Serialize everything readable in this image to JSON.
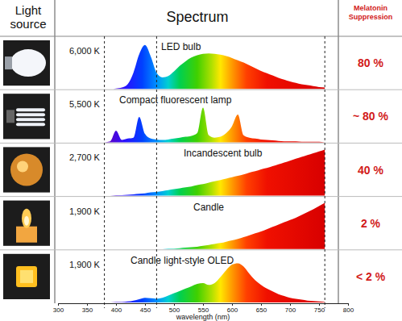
{
  "chart_data": {
    "type": "area",
    "column_headers": [
      "Light source",
      "Spectrum",
      "Melatonin Suppression"
    ],
    "x_label": "wavelength (nm)",
    "xlim": [
      300,
      800
    ],
    "xticks": [
      300,
      350,
      400,
      450,
      500,
      550,
      600,
      650,
      700,
      750,
      800
    ],
    "ylim": [
      0,
      100
    ],
    "tick_labels": "x",
    "reference_lines": [
      380,
      470,
      760
    ],
    "x": [
      380,
      390,
      400,
      410,
      420,
      430,
      440,
      450,
      460,
      470,
      480,
      490,
      500,
      510,
      520,
      530,
      540,
      550,
      560,
      570,
      580,
      590,
      600,
      610,
      620,
      630,
      640,
      650,
      660,
      670,
      680,
      690,
      700,
      710,
      720,
      730,
      740,
      750,
      760
    ],
    "series": [
      {
        "name": "LED bulb",
        "color_temperature": {
          "value": 6000,
          "label": "6,000 K"
        },
        "melatonin_suppression": {
          "value": 80,
          "label": "80 %"
        },
        "values": [
          0,
          0,
          1,
          3,
          10,
          35,
          75,
          95,
          70,
          35,
          25,
          28,
          38,
          50,
          60,
          68,
          73,
          76,
          77,
          76,
          74,
          71,
          67,
          62,
          57,
          51,
          45,
          39,
          34,
          29,
          24,
          20,
          16,
          13,
          10,
          8,
          6,
          4,
          3
        ]
      },
      {
        "name": "Compact fluorescent lamp",
        "color_temperature": {
          "value": 5500,
          "label": "5,500 K"
        },
        "melatonin_suppression": {
          "value": 80,
          "label": "~ 80 %"
        },
        "values": [
          0,
          2,
          25,
          5,
          8,
          10,
          55,
          18,
          8,
          6,
          5,
          6,
          8,
          10,
          12,
          14,
          20,
          75,
          15,
          10,
          12,
          20,
          35,
          60,
          15,
          10,
          8,
          6,
          5,
          4,
          3,
          2,
          2,
          2,
          1,
          1,
          1,
          1,
          0
        ]
      },
      {
        "name": "Incandescent bulb",
        "color_temperature": {
          "value": 2700,
          "label": "2,700 K"
        },
        "melatonin_suppression": {
          "value": 40,
          "label": "40 %"
        },
        "values": [
          0,
          0,
          1,
          1,
          2,
          3,
          4,
          5,
          7,
          8,
          10,
          12,
          14,
          16,
          18,
          20,
          23,
          25,
          28,
          31,
          34,
          37,
          40,
          43,
          46,
          50,
          53,
          57,
          60,
          64,
          68,
          72,
          76,
          80,
          84,
          88,
          92,
          96,
          100
        ]
      },
      {
        "name": "Candle",
        "color_temperature": {
          "value": 1900,
          "label": "1,900 K"
        },
        "melatonin_suppression": {
          "value": 2,
          "label": "2 %"
        },
        "values": [
          0,
          0,
          0,
          0,
          0,
          0,
          0,
          0,
          0,
          0,
          0,
          1,
          1,
          2,
          3,
          4,
          5,
          7,
          9,
          11,
          13,
          16,
          19,
          22,
          26,
          30,
          34,
          38,
          43,
          48,
          53,
          58,
          63,
          68,
          74,
          80,
          86,
          93,
          100
        ]
      },
      {
        "name": "Candle light-style OLED",
        "color_temperature": {
          "value": 1900,
          "label": "1,900 K"
        },
        "melatonin_suppression": {
          "value": 2,
          "label": "< 2 %"
        },
        "values": [
          0,
          0,
          1,
          1,
          2,
          4,
          7,
          10,
          9,
          8,
          10,
          15,
          20,
          25,
          30,
          35,
          40,
          42,
          38,
          42,
          55,
          70,
          82,
          85,
          78,
          62,
          48,
          38,
          30,
          24,
          18,
          14,
          10,
          8,
          6,
          4,
          3,
          2,
          1
        ]
      }
    ]
  }
}
